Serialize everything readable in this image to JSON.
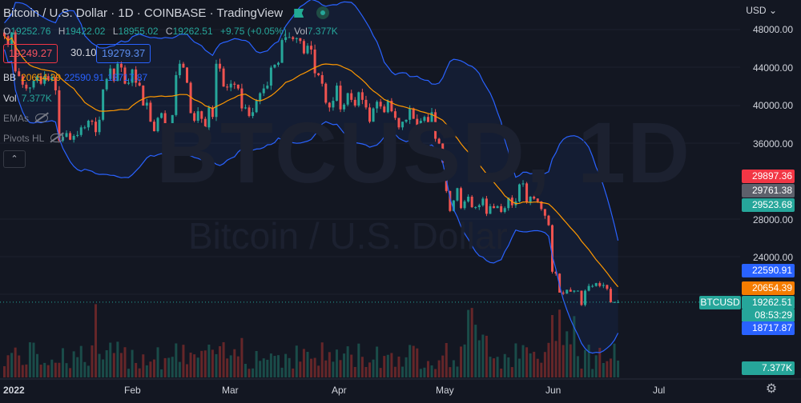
{
  "header": {
    "title": "Bitcoin / U.S. Dollar",
    "interval": "1D",
    "exchange": "COINBASE",
    "source": "TradingView"
  },
  "ohlc": {
    "o_label": "O",
    "o_value": "19252.76",
    "h_label": "H",
    "h_value": "19422.02",
    "l_label": "L",
    "l_value": "18955.02",
    "c_label": "C",
    "c_value": "19262.51",
    "change": "+9.75 (+0.05%)",
    "vol_label": "Vol",
    "vol_value": "7.377K"
  },
  "price_boxes": {
    "sell": "19249.27",
    "spread": "30.10",
    "buy": "19279.37"
  },
  "indicators": {
    "bb_label": "BB",
    "bb_basis": "20654.39",
    "bb_upper": "22590.91",
    "bb_lower": "18717.87",
    "vol_label": "Vol",
    "vol_value": "7.377K",
    "emas_label": "EMAs",
    "pivots_label": "Pivots HL"
  },
  "watermark": {
    "symbol": "BTCUSD, 1D",
    "name": "Bitcoin / U.S. Dollar"
  },
  "axis": {
    "currency": "USD",
    "y_ticks": [
      "48000.00",
      "44000.00",
      "40000.00",
      "36000.00",
      "28000.00",
      "24000.00"
    ],
    "x_ticks": [
      "2022",
      "Feb",
      "Mar",
      "Apr",
      "May",
      "Jun",
      "Jul"
    ]
  },
  "price_labels": {
    "high_red": "29897.36",
    "gray": "29761.38",
    "green": "29523.68",
    "bb_upper": "22590.91",
    "bb_basis": "20654.39",
    "last": "19262.51",
    "symbol": "BTCUSD",
    "countdown": "08:53:29",
    "bb_lower": "18717.87",
    "volume": "7.377K"
  },
  "colors": {
    "up": "#26a69a",
    "down": "#ef5350",
    "bb_band": "#2962ff",
    "bb_basis": "#ff9800",
    "label_red": "#f23645",
    "label_gray": "#5d606b",
    "label_blue": "#2962ff",
    "label_orange": "#f57c00"
  },
  "chart_data": {
    "type": "candlestick",
    "series_name": "BTCUSD",
    "y_range": [
      18000,
      49000
    ],
    "x_labels": [
      "2022",
      "Feb",
      "Mar",
      "Apr",
      "May",
      "Jun",
      "Jul"
    ],
    "closes": [
      47300,
      46400,
      47700,
      43600,
      43100,
      42200,
      41800,
      41900,
      42600,
      43100,
      42300,
      43100,
      42700,
      43000,
      41600,
      36300,
      36700,
      37100,
      36400,
      36800,
      36900,
      37700,
      37700,
      38400,
      38300,
      37200,
      38500,
      41700,
      42800,
      43900,
      42600,
      44400,
      44000,
      42300,
      42400,
      43800,
      42400,
      42100,
      40000,
      40300,
      38300,
      37300,
      38700,
      39200,
      37200,
      37700,
      39000,
      43200,
      44400,
      44000,
      42400,
      39200,
      38400,
      39400,
      38600,
      37700,
      39800,
      38800,
      44400,
      43900,
      42000,
      41900,
      42300,
      42200,
      41800,
      39700,
      39800,
      38900,
      39300,
      40500,
      41300,
      41800,
      42100,
      44000,
      44300,
      44500,
      46900,
      47200,
      47200,
      47000,
      47100,
      46800,
      45500,
      46300,
      45900,
      43400,
      43200,
      42300,
      40300,
      39800,
      40500,
      42100,
      39600,
      40100,
      41300,
      40600,
      40000,
      41400,
      40600,
      39800,
      38300,
      39700,
      40400,
      39900,
      39300,
      40500,
      39400,
      38700,
      37700,
      38300,
      38500,
      39700,
      38600,
      37700,
      38400,
      38800,
      37700,
      39300,
      36500,
      36000,
      34000,
      31000,
      28900,
      30000,
      31300,
      29200,
      29900,
      30400,
      29300,
      29300,
      29500,
      30200,
      28600,
      29400,
      29200,
      29400,
      28800,
      29200,
      30300,
      29500,
      29900,
      31700,
      31800,
      29800,
      30400,
      30200,
      29900,
      29100,
      28400,
      27400,
      22500,
      22300,
      20300,
      20200,
      20600,
      20400,
      20500,
      20500,
      19000,
      20500,
      21000,
      21000,
      21300,
      21000,
      21100,
      20700,
      19300,
      19300,
      19300
    ]
  }
}
